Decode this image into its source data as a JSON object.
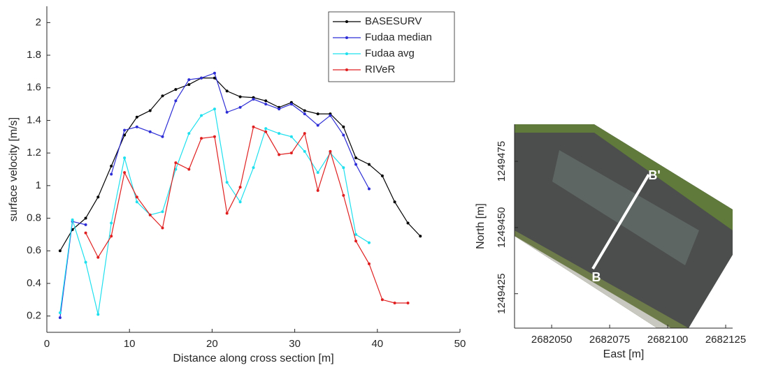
{
  "chart_data": [
    {
      "type": "line",
      "x_label": "Distance along cross section [m]",
      "y_label": "surface velocity [m/s]",
      "x": [
        1.6,
        3.1,
        4.7,
        6.2,
        7.8,
        9.4,
        10.9,
        12.5,
        14,
        15.6,
        17.2,
        18.7,
        20.3,
        21.8,
        23.4,
        25,
        26.5,
        28.1,
        29.6,
        31.2,
        32.8,
        34.3,
        35.9,
        37.4,
        39,
        40.6,
        42.1,
        43.7,
        45.2
      ],
      "series": [
        {
          "name": "BASESURV",
          "color": "#000000",
          "values": [
            0.6,
            0.73,
            0.8,
            0.93,
            1.12,
            1.31,
            1.42,
            1.46,
            1.55,
            1.59,
            1.62,
            1.66,
            1.66,
            1.58,
            1.545,
            1.54,
            1.52,
            1.48,
            1.51,
            1.46,
            1.44,
            1.44,
            1.36,
            1.17,
            1.13,
            1.06,
            0.9,
            0.77,
            0.69
          ]
        },
        {
          "name": "Fudaa median",
          "color": "#2e2ed6",
          "values": [
            0.19,
            0.78,
            0.76,
            null,
            1.07,
            1.34,
            1.36,
            1.33,
            1.3,
            1.52,
            1.65,
            1.66,
            1.69,
            1.45,
            1.48,
            1.53,
            1.5,
            1.47,
            1.5,
            1.44,
            1.37,
            1.43,
            1.31,
            1.13,
            0.98,
            null,
            null,
            null,
            null
          ]
        },
        {
          "name": "Fudaa avg",
          "color": "#1ee0ee",
          "values": [
            0.22,
            0.79,
            0.53,
            0.21,
            0.77,
            1.17,
            0.9,
            0.82,
            0.84,
            1.1,
            1.32,
            1.43,
            1.47,
            1.02,
            0.9,
            1.11,
            1.35,
            1.32,
            1.3,
            1.21,
            1.08,
            1.2,
            1.11,
            0.7,
            0.65,
            null,
            null,
            null,
            null
          ]
        },
        {
          "name": "RIVeR",
          "color": "#e02020",
          "values": [
            null,
            null,
            0.71,
            0.56,
            0.69,
            1.08,
            0.93,
            0.82,
            0.74,
            1.14,
            1.1,
            1.29,
            1.3,
            0.83,
            0.99,
            1.36,
            1.33,
            1.19,
            1.2,
            1.32,
            0.97,
            1.21,
            0.94,
            0.66,
            0.52,
            0.3,
            0.28,
            0.28,
            null
          ]
        }
      ],
      "xlim": [
        0,
        50
      ],
      "xticks": [
        0,
        10,
        20,
        30,
        40,
        50
      ],
      "ylim": [
        0.1,
        2.1
      ],
      "yticks": [
        0.2,
        0.4,
        0.6,
        0.8,
        1,
        1.2,
        1.4,
        1.6,
        1.8,
        2
      ],
      "legend": "top-right"
    },
    {
      "type": "image",
      "x_label": "East [m]",
      "y_label": "North [m]",
      "xlim": [
        2682034,
        2682128
      ],
      "xticks": [
        2682050,
        2682075,
        2682100,
        2682125
      ],
      "ylim": [
        1249412,
        1249489
      ],
      "yticks": [
        1249425,
        1249450,
        1249475
      ],
      "annotations": [
        "B",
        "B'"
      ]
    }
  ]
}
